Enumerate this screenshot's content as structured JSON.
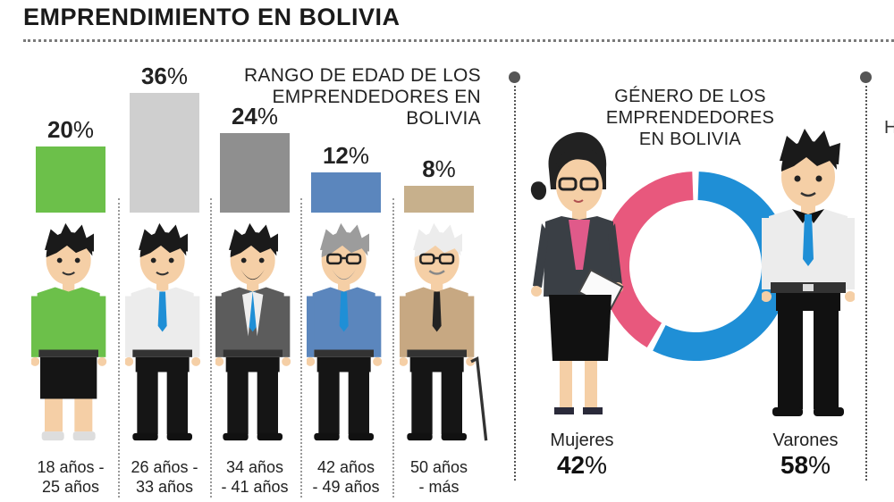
{
  "title": "EMPRENDIMIENTO EN BOLIVIA",
  "chart_data": [
    {
      "type": "bar",
      "title": "RANGO DE EDAD DE LOS EMPRENDEDORES EN BOLIVIA",
      "categories": [
        "18 años - 25 años",
        "26 años - 33 años",
        "34 años - 41 años",
        "42 años - 49 años",
        "50 años - más"
      ],
      "category_lines": [
        [
          "18 años -",
          "25 años"
        ],
        [
          "26 años -",
          "33 años"
        ],
        [
          "34 años",
          "- 41 años"
        ],
        [
          "42 años",
          "- 49 años"
        ],
        [
          "50 años",
          "- más"
        ]
      ],
      "values": [
        20,
        36,
        24,
        12,
        8
      ],
      "unit": "%",
      "colors": [
        "#6cc04a",
        "#cfcfcf",
        "#8f8f8f",
        "#5b86bd",
        "#c7b08c"
      ],
      "icons": [
        "young-man-green-shirt-icon",
        "young-man-tie-icon",
        "bearded-man-suit-icon",
        "gray-haired-man-glasses-icon",
        "elderly-man-cane-icon"
      ]
    },
    {
      "type": "pie",
      "style": "donut",
      "title": "GÉNERO DE LOS EMPRENDEDORES EN BOLIVIA",
      "categories": [
        "Mujeres",
        "Varones"
      ],
      "values": [
        42,
        58
      ],
      "unit": "%",
      "colors": [
        "#e8587d",
        "#1f8fd6"
      ],
      "icons": [
        "businesswoman-icon",
        "businessman-icon"
      ]
    }
  ],
  "ui": {
    "cut_letter": "H"
  }
}
